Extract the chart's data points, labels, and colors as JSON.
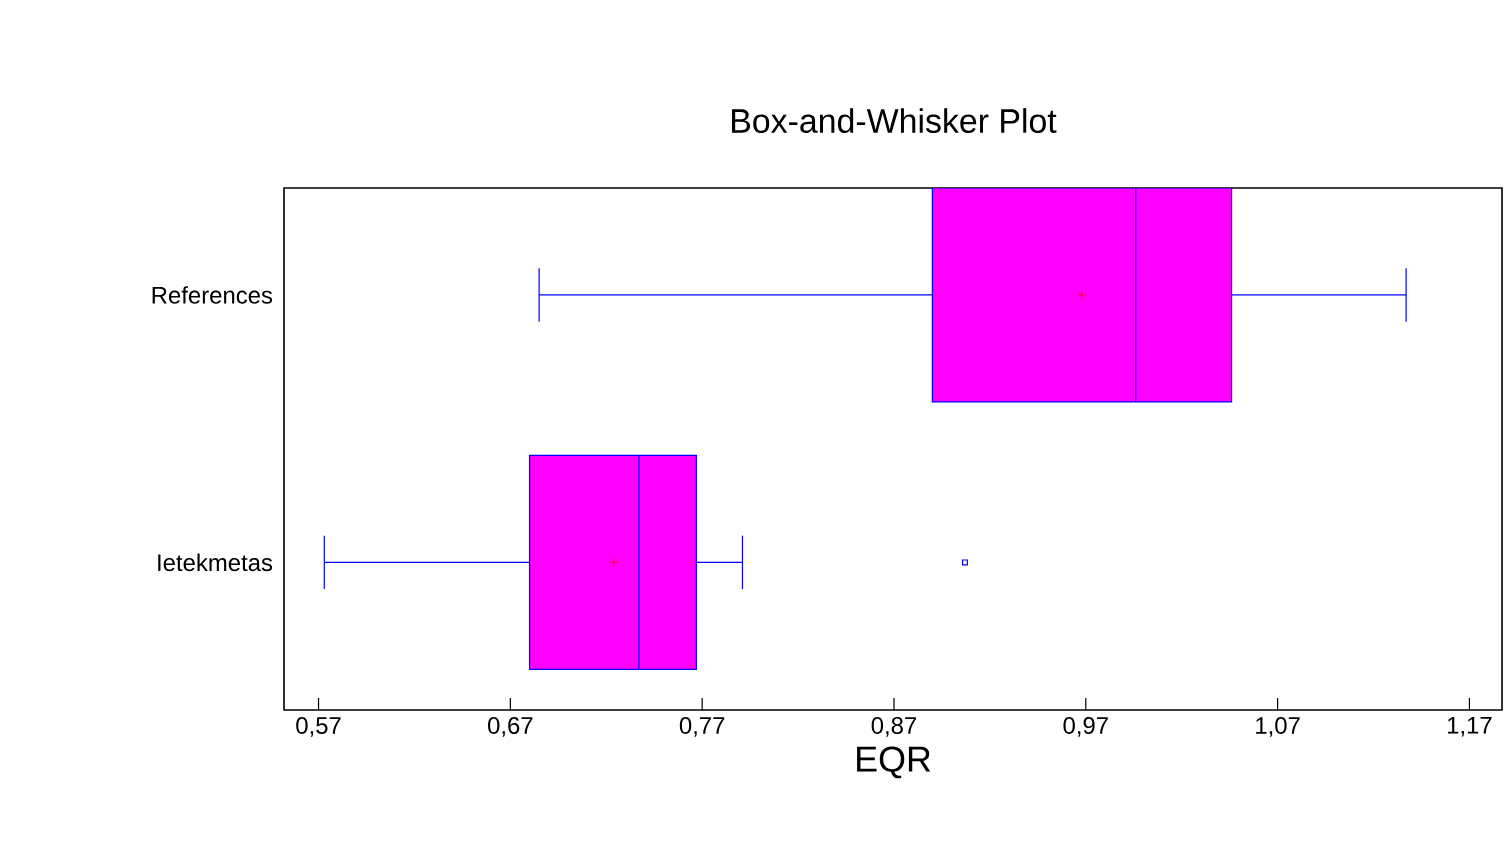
{
  "chart_data": {
    "type": "box",
    "orientation": "horizontal",
    "title": "Box-and-Whisker Plot",
    "xlabel": "EQR",
    "categories": [
      "References",
      "Ietekmetas"
    ],
    "color": "#ff00ff",
    "boxes": [
      {
        "low": 0.685,
        "q1": 0.89,
        "median": 0.996,
        "q3": 1.046,
        "high": 1.137,
        "mean": 0.968
      },
      {
        "low": 0.573,
        "q1": 0.68,
        "median": 0.737,
        "q3": 0.767,
        "high": 0.791,
        "mean": 0.724,
        "outliers": [
          0.907
        ]
      }
    ],
    "xlim": [
      0.552,
      1.187
    ],
    "xticks": [
      {
        "value": 0.57,
        "label": "0,57"
      },
      {
        "value": 0.67,
        "label": "0,67"
      },
      {
        "value": 0.77,
        "label": "0,77"
      },
      {
        "value": 0.87,
        "label": "0,87"
      },
      {
        "value": 0.97,
        "label": "0,97"
      },
      {
        "value": 1.07,
        "label": "1,07"
      },
      {
        "value": 1.17,
        "label": "1,17"
      }
    ]
  }
}
